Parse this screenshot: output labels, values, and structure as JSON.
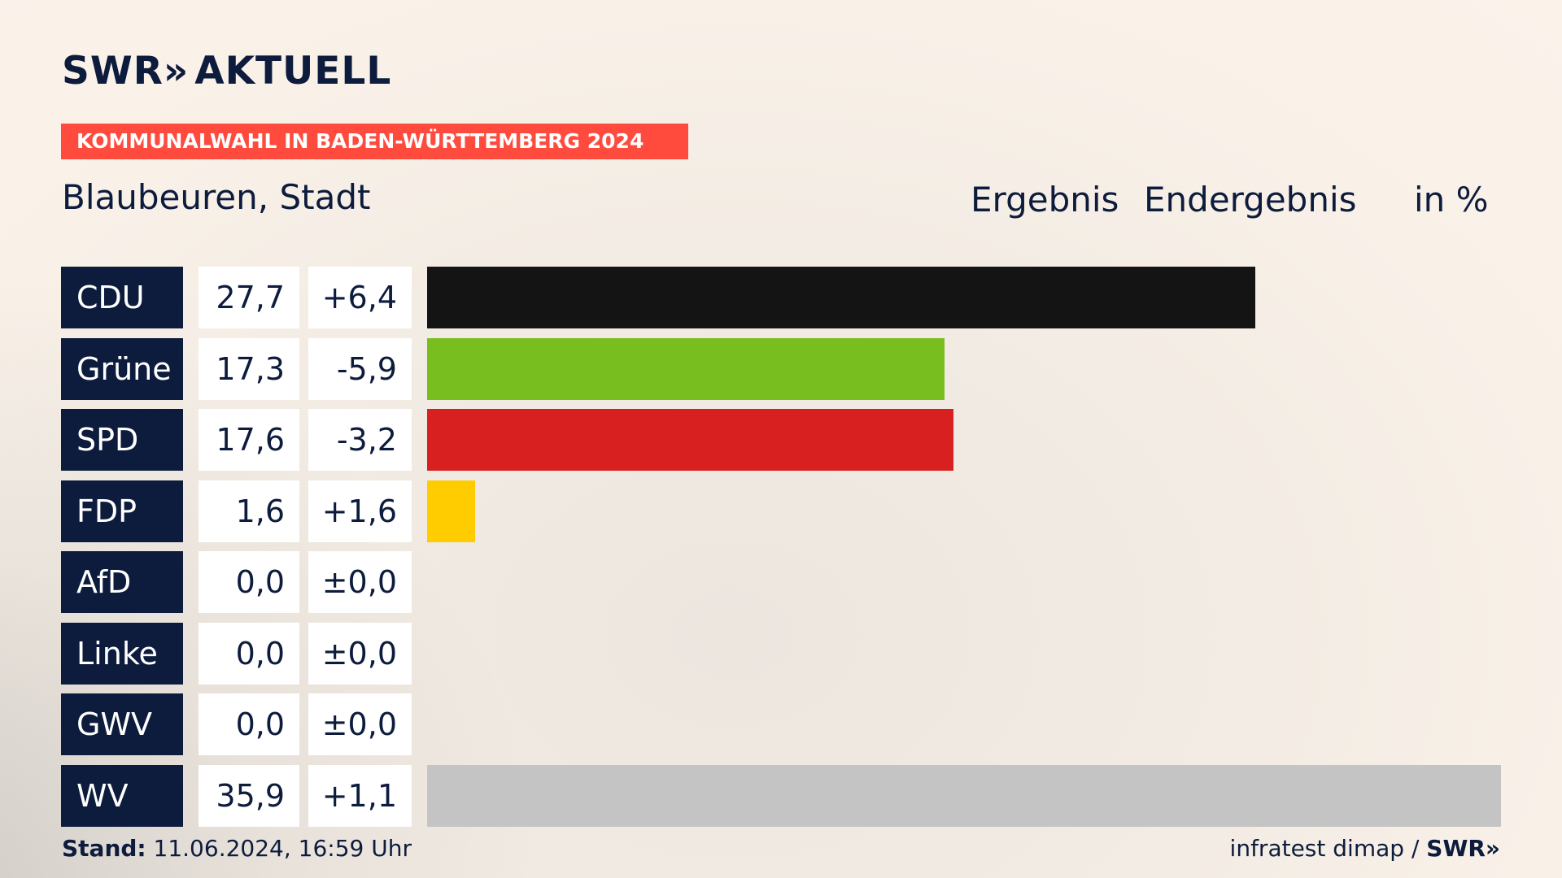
{
  "brand": {
    "logo_text": "SWR",
    "logo_chevrons": "»",
    "logo_suffix": "AKTUELL",
    "banner": "KOMMUNALWAHL IN BADEN-WÜRTTEMBERG 2024",
    "banner_color": "#ff4b3e",
    "navy": "#0d1c3d"
  },
  "header": {
    "place": "Blaubeuren, Stadt",
    "result_label": "Ergebnis",
    "final_label": "Endergebnis",
    "unit_label": "in %"
  },
  "chart_data": {
    "type": "bar",
    "orientation": "horizontal",
    "categories": [
      "CDU",
      "Grüne",
      "SPD",
      "FDP",
      "AfD",
      "Linke",
      "GWV",
      "WV"
    ],
    "values": [
      27.7,
      17.3,
      17.6,
      1.6,
      0.0,
      0.0,
      0.0,
      35.9
    ],
    "value_labels": [
      "27,7",
      "17,3",
      "17,6",
      "1,6",
      "0,0",
      "0,0",
      "0,0",
      "35,9"
    ],
    "diff_labels": [
      "+6,4",
      "-5,9",
      "-3,2",
      "+1,6",
      "±0,0",
      "±0,0",
      "±0,0",
      "+1,1"
    ],
    "colors": [
      "#141414",
      "#78be1e",
      "#d7201f",
      "#ffcc00",
      "#009ee0",
      "#be3075",
      "#8a8a8a",
      "#c4c4c4"
    ],
    "xlim": [
      0,
      35.9
    ]
  },
  "footer": {
    "stand_label": "Stand:",
    "stand_value": "11.06.2024, 16:59 Uhr",
    "source": "infratest dimap",
    "source_sep": "/",
    "source_brand": "SWR",
    "source_chevrons": "»"
  }
}
